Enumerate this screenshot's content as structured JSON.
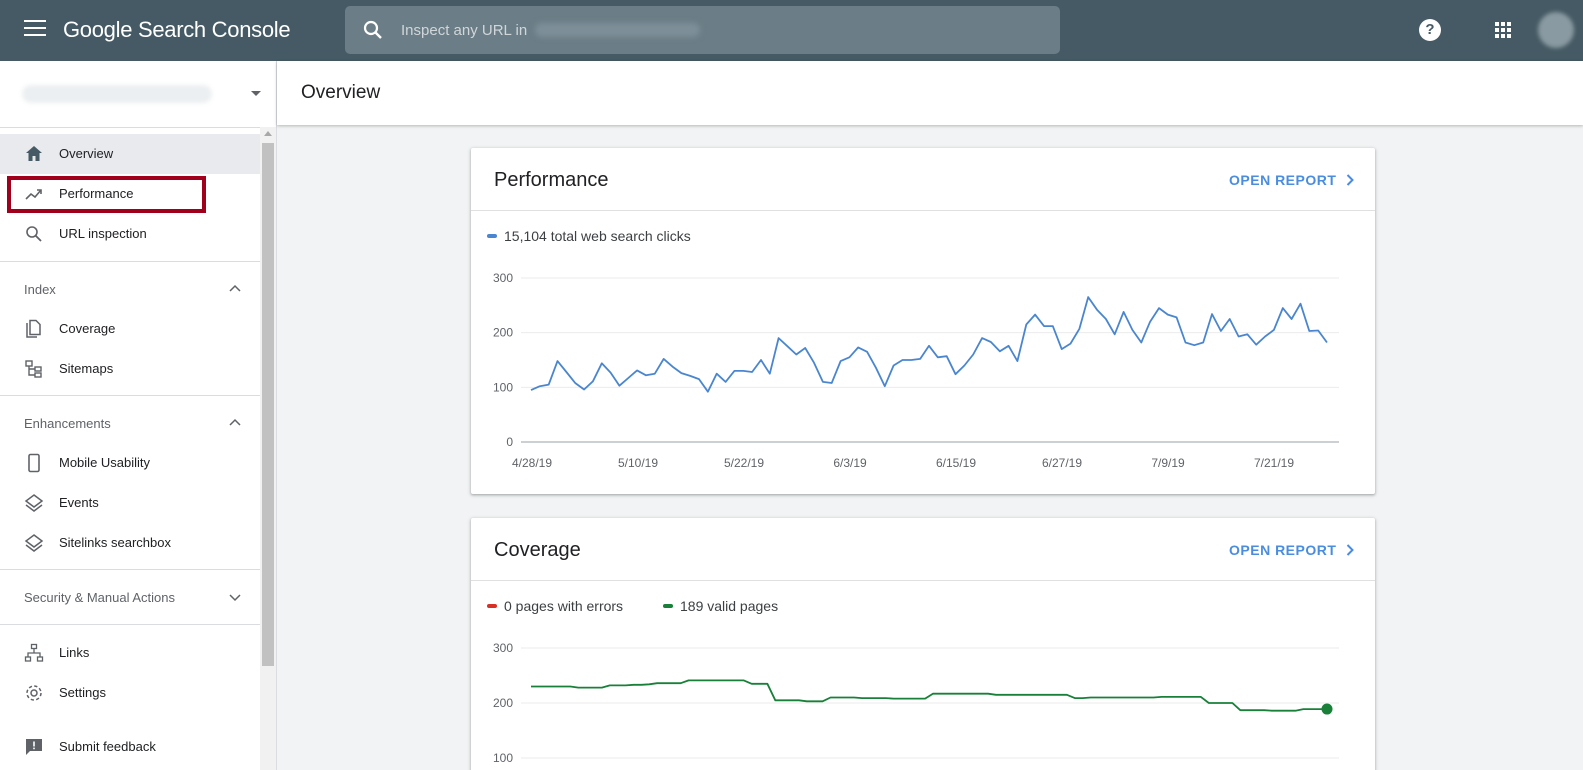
{
  "app": {
    "title": "Google Search Console",
    "search_placeholder": "Inspect any URL in",
    "colors": {
      "topbar": "#455a64",
      "accent": "#4a8de0",
      "performance_line": "#4a86d0",
      "valid_line": "#188038",
      "error_line": "#d93025",
      "highlight": "#a0001c"
    }
  },
  "header": {
    "page_title": "Overview"
  },
  "sidebar": {
    "items": [
      {
        "label": "Overview",
        "icon": "home-icon"
      },
      {
        "label": "Performance",
        "icon": "trending-up-icon"
      },
      {
        "label": "URL inspection",
        "icon": "search-icon"
      }
    ],
    "index": {
      "label": "Index",
      "items": [
        {
          "label": "Coverage",
          "icon": "file-copy-icon"
        },
        {
          "label": "Sitemaps",
          "icon": "sitemap-icon"
        }
      ]
    },
    "enhancements": {
      "label": "Enhancements",
      "items": [
        {
          "label": "Mobile Usability",
          "icon": "phone-icon"
        },
        {
          "label": "Events",
          "icon": "layers-icon"
        },
        {
          "label": "Sitelinks searchbox",
          "icon": "layers-icon"
        }
      ]
    },
    "security": {
      "label": "Security & Manual Actions"
    },
    "bottom": [
      {
        "label": "Links",
        "icon": "links-icon"
      },
      {
        "label": "Settings",
        "icon": "gear-icon"
      },
      {
        "label": "Submit feedback",
        "icon": "feedback-icon"
      }
    ]
  },
  "performance_card": {
    "title": "Performance",
    "open_report": "OPEN REPORT",
    "legend": "15,104 total web search clicks"
  },
  "coverage_card": {
    "title": "Coverage",
    "open_report": "OPEN REPORT",
    "legend_errors": "0 pages with errors",
    "legend_valid": "189 valid pages"
  },
  "chart_data": [
    {
      "type": "line",
      "title": "",
      "xlabel": "",
      "ylabel": "",
      "ylim": [
        0,
        300
      ],
      "yticks": [
        0,
        100,
        200,
        300
      ],
      "x_tick_labels": [
        "4/28/19",
        "5/10/19",
        "5/22/19",
        "6/3/19",
        "6/15/19",
        "6/27/19",
        "7/9/19",
        "7/21/19"
      ],
      "grid": true,
      "series": [
        {
          "name": "15,104 total web search clicks",
          "values": [
            95,
            102,
            105,
            148,
            128,
            108,
            96,
            111,
            144,
            127,
            103,
            117,
            131,
            122,
            125,
            152,
            138,
            126,
            121,
            115,
            92,
            125,
            110,
            130,
            130,
            128,
            150,
            125,
            190,
            175,
            160,
            172,
            145,
            110,
            108,
            148,
            155,
            173,
            165,
            136,
            102,
            140,
            150,
            150,
            152,
            176,
            155,
            157,
            124,
            140,
            160,
            190,
            183,
            166,
            176,
            148,
            215,
            233,
            212,
            212,
            170,
            180,
            207,
            265,
            242,
            225,
            197,
            238,
            205,
            182,
            220,
            245,
            233,
            228,
            182,
            177,
            182,
            234,
            203,
            225,
            193,
            197,
            178,
            193,
            205,
            245,
            225,
            253,
            203,
            204,
            182
          ]
        }
      ]
    },
    {
      "type": "line",
      "title": "",
      "xlabel": "",
      "ylabel": "",
      "ylim": [
        100,
        300
      ],
      "yticks": [
        100,
        200,
        300
      ],
      "grid": true,
      "series": [
        {
          "name": "189 valid pages",
          "values": [
            230,
            230,
            230,
            230,
            230,
            230,
            228,
            228,
            228,
            228,
            232,
            232,
            232,
            233,
            233,
            234,
            236,
            236,
            236,
            236,
            241,
            241,
            241,
            241,
            241,
            241,
            241,
            241,
            235,
            235,
            235,
            205,
            205,
            205,
            205,
            203,
            203,
            203,
            210,
            210,
            210,
            210,
            209,
            209,
            209,
            209,
            208,
            208,
            208,
            208,
            208,
            217,
            217,
            217,
            217,
            217,
            217,
            217,
            217,
            215,
            215,
            215,
            215,
            215,
            215,
            215,
            215,
            215,
            215,
            209,
            209,
            210,
            210,
            210,
            210,
            210,
            210,
            210,
            210,
            210,
            211,
            211,
            211,
            211,
            211,
            211,
            200,
            200,
            200,
            200,
            187,
            187,
            187,
            187,
            186,
            186,
            186,
            186,
            189,
            189,
            189,
            189
          ]
        },
        {
          "name": "0 pages with errors",
          "values": []
        }
      ]
    }
  ]
}
